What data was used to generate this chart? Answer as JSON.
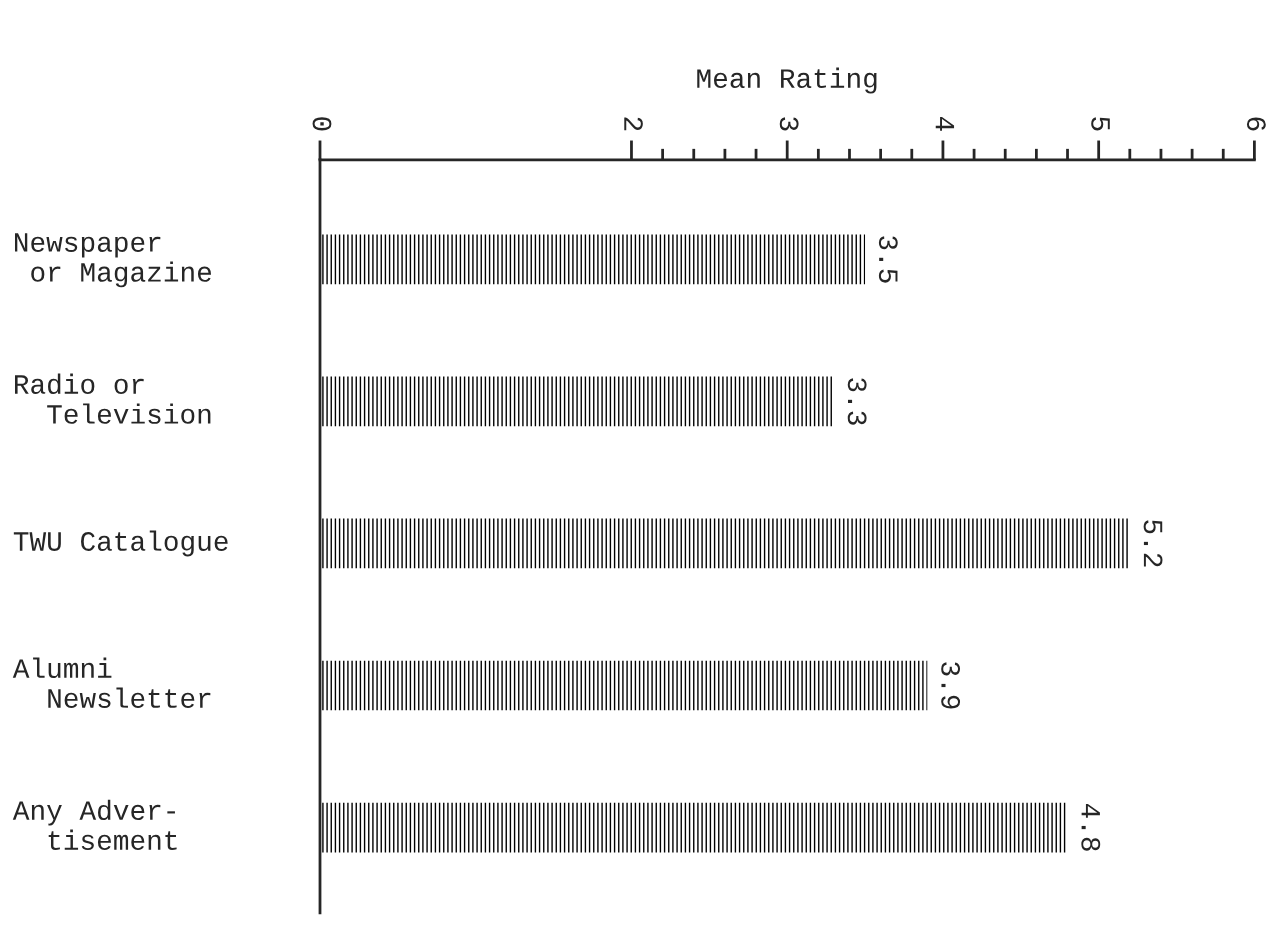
{
  "chart_data": {
    "type": "bar",
    "orientation": "horizontal",
    "xlabel": "Mean Rating",
    "categories": [
      "Newspaper\n or Magazine",
      "Radio or\n  Television",
      "TWU Catalogue",
      "Alumni\n  Newsletter",
      "Any Adver-\n  tisement"
    ],
    "values": [
      3.5,
      3.3,
      5.2,
      3.9,
      4.8
    ],
    "color": "#000000",
    "xlim": [
      0,
      6
    ],
    "xticks": [
      0,
      2,
      {
        "value": 2.2,
        "label": null
      },
      {
        "value": 2.4,
        "label": null
      },
      {
        "value": 2.6,
        "label": null
      },
      {
        "value": 2.8,
        "label": null
      },
      3,
      {
        "value": 3.2,
        "label": null
      },
      {
        "value": 3.4,
        "label": null
      },
      {
        "value": 3.6,
        "label": null
      },
      {
        "value": 3.8,
        "label": null
      },
      4,
      {
        "value": 4.2,
        "label": null
      },
      {
        "value": 4.4,
        "label": null
      },
      {
        "value": 4.6,
        "label": null
      },
      {
        "value": 4.8,
        "label": null
      },
      5,
      {
        "value": 5.2,
        "label": null
      },
      {
        "value": 5.4,
        "label": null
      },
      {
        "value": 5.6,
        "label": null
      },
      {
        "value": 5.8,
        "label": null
      },
      6
    ],
    "data_labels": true,
    "grid": false,
    "legend": false
  }
}
